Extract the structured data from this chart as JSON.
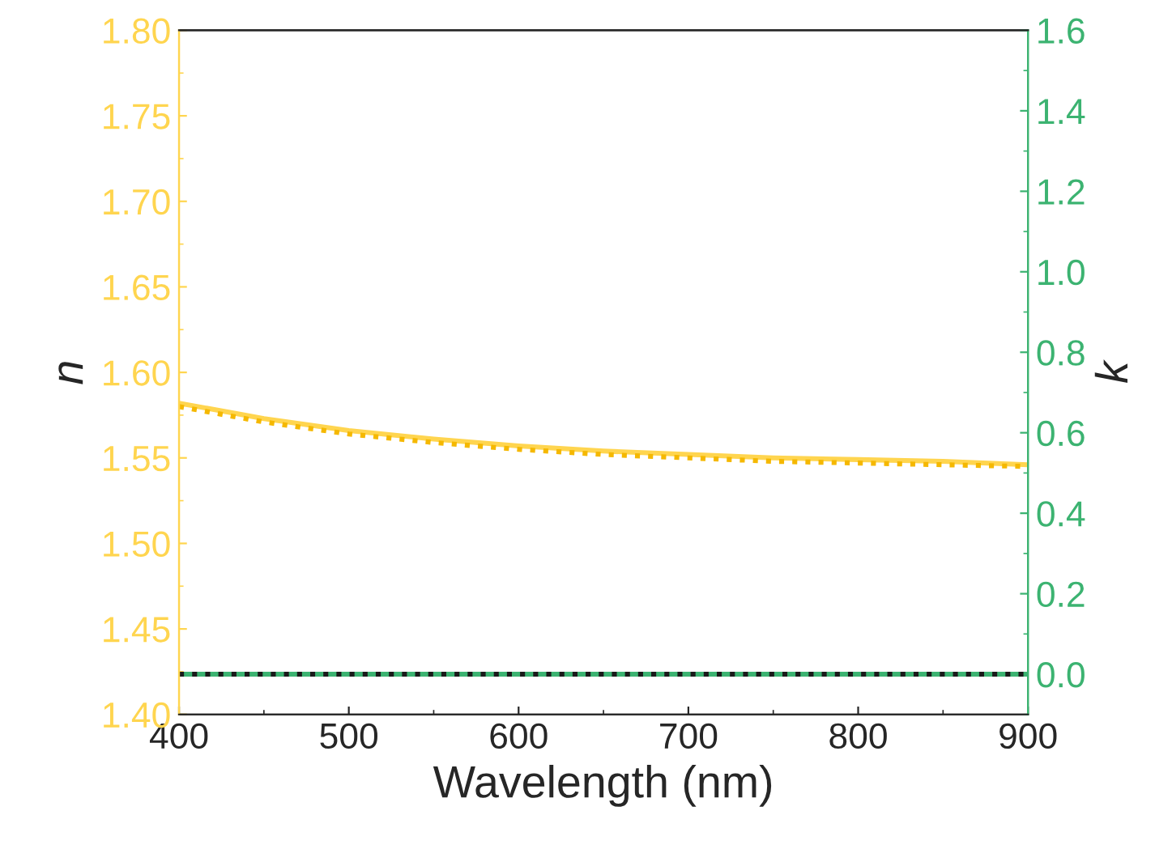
{
  "chart_data": {
    "type": "line",
    "xlabel": "Wavelength (nm)",
    "ylabel": "n",
    "y2label": "k",
    "x": [
      400,
      450,
      500,
      550,
      600,
      650,
      700,
      750,
      800,
      850,
      900
    ],
    "series": [
      {
        "color": "#ffd54f",
        "line_style": "solid",
        "values": [
          1.582,
          1.573,
          1.566,
          1.561,
          1.557,
          1.554,
          1.552,
          1.55,
          1.549,
          1.548,
          1.546
        ]
      },
      {
        "color": "#f5b800",
        "line_style": "dotted",
        "values": [
          1.58,
          1.571,
          1.564,
          1.559,
          1.555,
          1.552,
          1.55,
          1.548,
          1.547,
          1.546,
          1.545
        ]
      },
      {
        "color": "#3cb371",
        "line_style": "solid",
        "axis": "y2",
        "values": [
          0,
          0,
          0,
          0,
          0,
          0,
          0,
          0,
          0,
          0,
          0
        ]
      },
      {
        "color": "#1a1a1a",
        "line_style": "dotted",
        "axis": "y2",
        "values": [
          0,
          0,
          0,
          0,
          0,
          0,
          0,
          0,
          0,
          0,
          0
        ]
      }
    ],
    "xlim": [
      400,
      900
    ],
    "xticks": [
      400,
      500,
      600,
      700,
      800,
      900
    ],
    "ylim": [
      1.4,
      1.8
    ],
    "yticks": [
      {
        "value": 1.4,
        "label": "1.40"
      },
      {
        "value": 1.45,
        "label": "1.45"
      },
      {
        "value": 1.5,
        "label": "1.50"
      },
      {
        "value": 1.55,
        "label": "1.55"
      },
      {
        "value": 1.6,
        "label": "1.60"
      },
      {
        "value": 1.65,
        "label": "1.65"
      },
      {
        "value": 1.7,
        "label": "1.70"
      },
      {
        "value": 1.75,
        "label": "1.75"
      },
      {
        "value": 1.8,
        "label": "1.80"
      }
    ],
    "y2lim": [
      -0.1,
      1.6
    ],
    "y2ticks": [
      {
        "value": 0,
        "label": "0.0"
      },
      {
        "value": 0.2,
        "label": "0.2"
      },
      {
        "value": 0.4,
        "label": "0.4"
      },
      {
        "value": 0.6,
        "label": "0.6"
      },
      {
        "value": 0.8,
        "label": "0.8"
      },
      {
        "value": 1.0,
        "label": "1.0"
      },
      {
        "value": 1.2,
        "label": "1.2"
      },
      {
        "value": 1.4,
        "label": "1.4"
      },
      {
        "value": 1.6,
        "label": "1.6"
      }
    ],
    "grid": false,
    "legend": false
  }
}
